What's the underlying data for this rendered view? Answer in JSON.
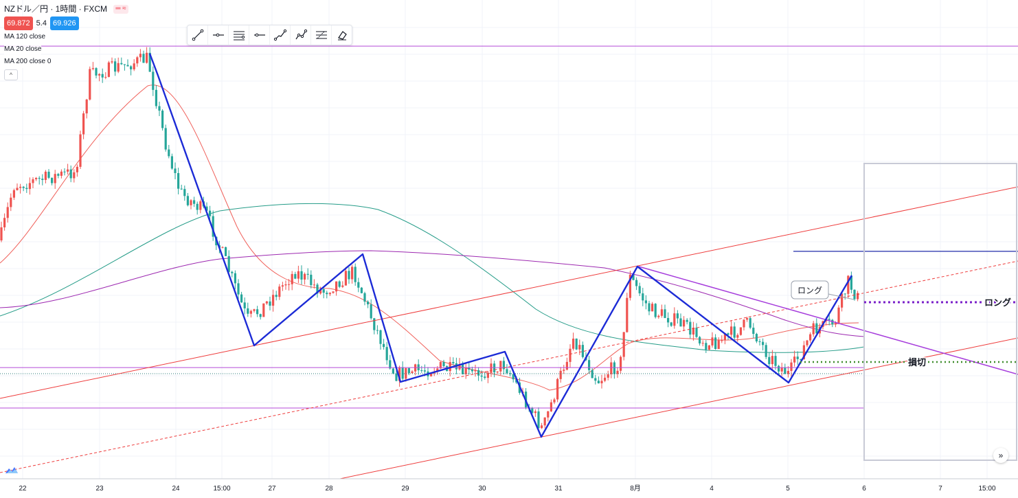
{
  "header": {
    "symbol": "NZドル／円 · 1時間 · FXCM",
    "bid": "69.872",
    "spread": "5.4",
    "ask": "69.926",
    "indicators": [
      "MA 120 close",
      "MA 20 close",
      "MA 200 close 0"
    ]
  },
  "toolbar": {
    "tools": [
      "trend-line-icon",
      "horizontal-ray-icon",
      "parallel-channel-icon",
      "horizontal-line-icon",
      "path-icon",
      "polyline-icon",
      "fib-icon",
      "eraser-icon"
    ]
  },
  "annotations": {
    "long_callout": "ロング",
    "long_label": "ロング",
    "stop_label": "損切"
  },
  "colors": {
    "up": "#ef5350",
    "down": "#26a69a",
    "wave": "#1c2bd6",
    "ma20": "#f0605a",
    "ma120": "#239b87",
    "ma200": "#9c27b0",
    "channel": "#ee3b3b",
    "level": "#b44ad8"
  },
  "chart_data": {
    "type": "line",
    "x_ticks": [
      "22",
      "23",
      "24",
      "15:00",
      "27",
      "28",
      "29",
      "30",
      "31",
      "8月",
      "4",
      "5",
      "6",
      "7",
      "15:00"
    ],
    "y_range": [
      68.7,
      71.0
    ],
    "grid": true,
    "zigzag": [
      {
        "x": "23",
        "y": 70.84
      },
      {
        "x": "24",
        "y": 69.83
      },
      {
        "x": "27",
        "y": 69.55
      },
      {
        "x": "28",
        "y": 70.02
      },
      {
        "x": "28",
        "y": 69.28
      },
      {
        "x": "29",
        "y": 69.21
      },
      {
        "x": "30",
        "y": 69.34
      },
      {
        "x": "30",
        "y": 68.83
      },
      {
        "x": "31",
        "y": 69.61
      },
      {
        "x": "8月",
        "y": 69.96
      },
      {
        "x": "4",
        "y": 69.7
      },
      {
        "x": "5",
        "y": 69.23
      },
      {
        "x": "6",
        "y": 69.7
      },
      {
        "x": "6",
        "y": 69.83
      }
    ],
    "horizontal_levels": [
      70.84,
      69.25,
      69.22,
      69.05
    ],
    "entry_level": 69.825,
    "stop_level": 69.355
  }
}
